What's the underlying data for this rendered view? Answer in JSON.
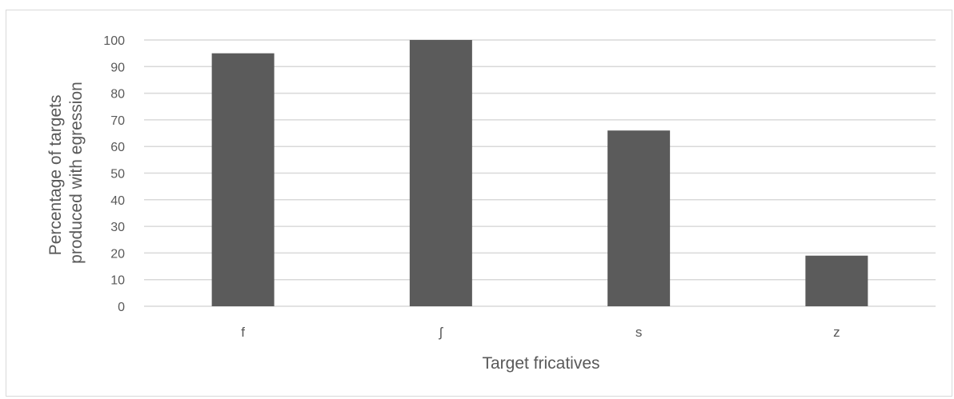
{
  "chart_data": {
    "type": "bar",
    "categories": [
      "f",
      "ʃ",
      "s",
      "z"
    ],
    "values": [
      95,
      100,
      66,
      19
    ],
    "title": "",
    "xlabel": "Target fricatives",
    "ylabel_lines": [
      "Percentage of targets",
      "produced with egression"
    ],
    "ylim": [
      0,
      100
    ],
    "yticks": [
      0,
      10,
      20,
      30,
      40,
      50,
      60,
      70,
      80,
      90,
      100
    ],
    "grid": true,
    "legend": "none",
    "colors": {
      "bar": "#5b5b5b",
      "grid": "#d9d9d9",
      "text": "#595959"
    }
  }
}
